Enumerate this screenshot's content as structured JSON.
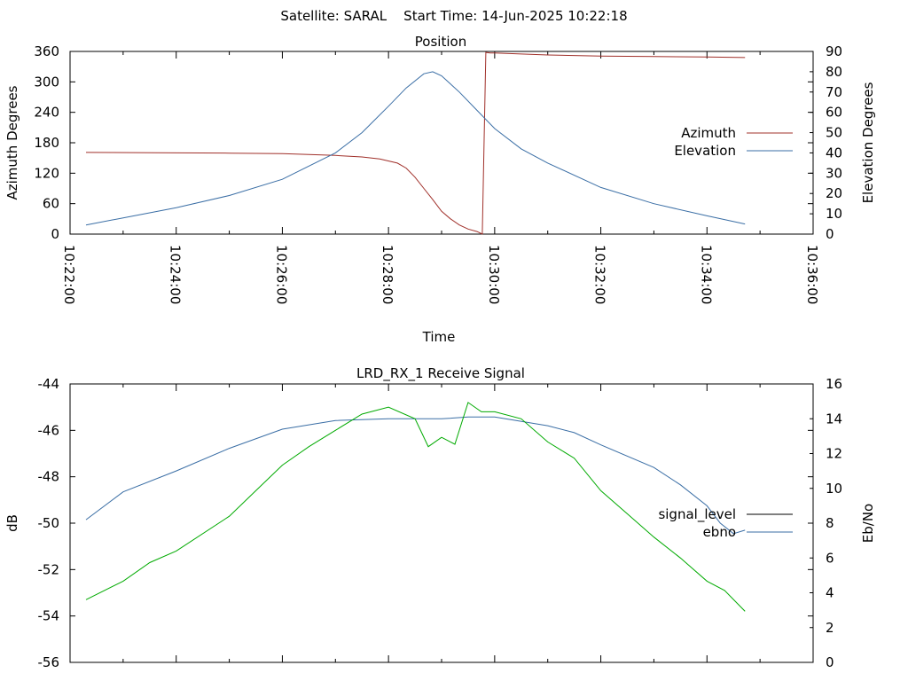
{
  "header": {
    "title": "Satellite: SARAL    Start Time: 14-Jun-2025 10:22:18"
  },
  "chart_data": [
    {
      "type": "line",
      "title": "Position",
      "xlabel": "Time",
      "ylabel": "Azimuth Degrees",
      "y2label": "Elevation Degrees",
      "xticks": [
        "10:22:00",
        "10:24:00",
        "10:26:00",
        "10:28:00",
        "10:30:00",
        "10:32:00",
        "10:34:00",
        "10:36:00"
      ],
      "xlim": [
        "10:22:00",
        "10:36:00"
      ],
      "ylim": [
        0,
        360
      ],
      "yticks": [
        0,
        60,
        120,
        180,
        240,
        300,
        360
      ],
      "y2lim": [
        0,
        90
      ],
      "y2ticks": [
        0,
        10,
        20,
        30,
        40,
        50,
        60,
        70,
        80,
        90
      ],
      "grid": false,
      "legend": "right",
      "series": [
        {
          "name": "Azimuth",
          "axis": "left",
          "color": "#a0302a",
          "x": [
            "10:22:18",
            "10:24:00",
            "10:25:00",
            "10:26:00",
            "10:26:30",
            "10:27:00",
            "10:27:30",
            "10:27:50",
            "10:28:10",
            "10:28:20",
            "10:28:30",
            "10:28:40",
            "10:28:50",
            "10:29:00",
            "10:29:10",
            "10:29:20",
            "10:29:30",
            "10:29:40",
            "10:29:46",
            "10:29:50",
            "10:29:55",
            "10:30:00",
            "10:30:30",
            "10:31:00",
            "10:32:00",
            "10:33:00",
            "10:34:00",
            "10:34:43"
          ],
          "y": [
            161,
            160,
            159.5,
            158.5,
            157,
            155,
            152,
            148,
            140,
            130,
            112,
            90,
            68,
            45,
            30,
            18,
            10,
            5,
            0,
            358,
            357,
            357,
            355,
            353,
            351,
            350,
            349,
            348
          ]
        },
        {
          "name": "Elevation",
          "axis": "right",
          "color": "#3a6ea5",
          "x": [
            "10:22:18",
            "10:23:00",
            "10:24:00",
            "10:25:00",
            "10:26:00",
            "10:27:00",
            "10:27:30",
            "10:28:00",
            "10:28:20",
            "10:28:40",
            "10:28:50",
            "10:29:00",
            "10:29:20",
            "10:29:40",
            "10:30:00",
            "10:30:30",
            "10:31:00",
            "10:32:00",
            "10:33:00",
            "10:34:00",
            "10:34:43"
          ],
          "y": [
            4.5,
            8,
            13,
            19,
            27,
            40,
            50,
            63,
            72,
            79,
            80,
            78,
            70,
            61,
            52,
            42,
            35,
            23,
            15,
            9,
            5
          ]
        }
      ]
    },
    {
      "type": "line",
      "title": "LRD_RX_1 Receive Signal",
      "xlabel": "",
      "ylabel": "dB",
      "y2label": "Eb/No",
      "xlim": [
        "10:22:00",
        "10:36:00"
      ],
      "ylim": [
        -56,
        -44
      ],
      "yticks": [
        -56,
        -54,
        -52,
        -50,
        -48,
        -46,
        -44
      ],
      "y2lim": [
        0,
        16
      ],
      "y2ticks": [
        0,
        2,
        4,
        6,
        8,
        10,
        12,
        14,
        16
      ],
      "grid": false,
      "legend": "right",
      "series": [
        {
          "name": "signal_level",
          "axis": "left",
          "color": "#000000",
          "x": [],
          "y": []
        },
        {
          "name": "ebno",
          "axis": "right",
          "color": "#3a6ea5",
          "x": [
            "10:22:18",
            "10:23:00",
            "10:24:00",
            "10:25:00",
            "10:26:00",
            "10:27:00",
            "10:28:00",
            "10:28:30",
            "10:29:00",
            "10:29:30",
            "10:30:00",
            "10:31:00",
            "10:31:30",
            "10:32:00",
            "10:33:00",
            "10:33:30",
            "10:34:00",
            "10:34:15",
            "10:34:30",
            "10:34:43"
          ],
          "y": [
            8.2,
            9.8,
            11,
            12.3,
            13.4,
            13.9,
            14.0,
            14.0,
            14.0,
            14.1,
            14.1,
            13.6,
            13.2,
            12.5,
            11.2,
            10.2,
            9.0,
            8.0,
            7.4,
            7.6
          ]
        },
        {
          "name": "",
          "axis": "left",
          "color": "#00aa00",
          "x": [
            "10:22:18",
            "10:23:00",
            "10:23:30",
            "10:24:00",
            "10:25:00",
            "10:25:30",
            "10:26:00",
            "10:26:30",
            "10:27:00",
            "10:27:30",
            "10:28:00",
            "10:28:30",
            "10:28:45",
            "10:29:00",
            "10:29:15",
            "10:29:30",
            "10:29:45",
            "10:30:00",
            "10:30:30",
            "10:31:00",
            "10:31:30",
            "10:32:00",
            "10:32:30",
            "10:33:00",
            "10:33:30",
            "10:34:00",
            "10:34:20",
            "10:34:43"
          ],
          "y": [
            -53.3,
            -52.5,
            -51.7,
            -51.2,
            -49.7,
            -48.6,
            -47.5,
            -46.7,
            -46.0,
            -45.3,
            -45.0,
            -45.5,
            -46.7,
            -46.3,
            -46.6,
            -44.8,
            -45.2,
            -45.2,
            -45.5,
            -46.5,
            -47.2,
            -48.6,
            -49.6,
            -50.6,
            -51.5,
            -52.5,
            -52.9,
            -53.8
          ]
        }
      ]
    }
  ]
}
